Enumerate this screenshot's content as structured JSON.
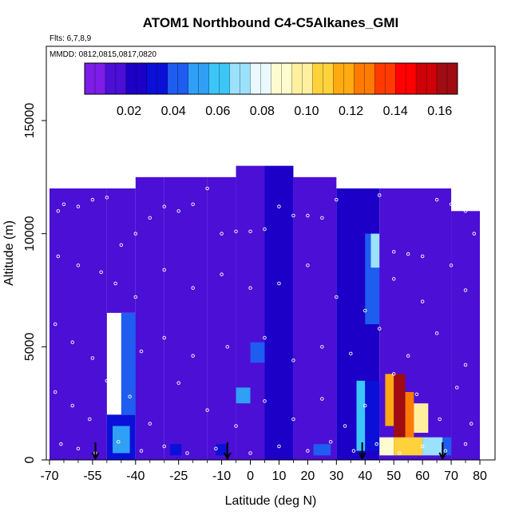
{
  "chart_data": {
    "type": "heatmap",
    "title": "ATOM1 Northbound C4-C5Alkanes_GMI",
    "flights_label": "Flts: 6,7,8,9",
    "dates_label": "MMDD: 0812,0815,0817,0820",
    "xlabel": "Latitude (deg N)",
    "ylabel": "Altitude (m)",
    "xlim": [
      -70,
      80
    ],
    "ylim": [
      0,
      17500
    ],
    "x_ticks": [
      -70,
      -55,
      -40,
      -25,
      -10,
      0,
      10,
      20,
      30,
      40,
      50,
      60,
      70,
      80
    ],
    "y_ticks": [
      0,
      5000,
      10000,
      15000
    ],
    "colorbar": {
      "range": [
        0,
        0.168
      ],
      "ticks": [
        0.02,
        0.04,
        0.06,
        0.08,
        0.1,
        0.12,
        0.14,
        0.16
      ],
      "tick_labels": [
        "0.02",
        "0.04",
        "0.06",
        "0.08",
        "0.10",
        "0.12",
        "0.14",
        "0.16"
      ],
      "colors": [
        "#7d1de8",
        "#4b0fd6",
        "#1c00c8",
        "#0a10d8",
        "#1f5cf0",
        "#2fa0f5",
        "#3cc6f7",
        "#9be1fb",
        "#eaf8ff",
        "#fffbd0",
        "#fff0a0",
        "#ffd23c",
        "#ffaa10",
        "#ff7a00",
        "#ff3a00",
        "#ff0000",
        "#d00008",
        "#a00c12"
      ]
    },
    "cells": [
      [
        -70,
        -50,
        0,
        12000,
        0.015
      ],
      [
        -50,
        -40,
        0,
        2000,
        0.03
      ],
      [
        -45,
        -38,
        2000,
        6500,
        0.045
      ],
      [
        -50,
        -40,
        6500,
        12000,
        0.012
      ],
      [
        -40,
        -30,
        0,
        12500,
        0.01
      ],
      [
        -30,
        -15,
        0,
        12500,
        0.012
      ],
      [
        -15,
        -5,
        0,
        12500,
        0.015
      ],
      [
        -5,
        5,
        0,
        13000,
        0.014
      ],
      [
        5,
        15,
        0,
        13000,
        0.02
      ],
      [
        15,
        30,
        0,
        12500,
        0.012
      ],
      [
        30,
        45,
        0,
        12000,
        0.02
      ],
      [
        40,
        47,
        6000,
        10000,
        0.045
      ],
      [
        42,
        48,
        8500,
        10000,
        0.07
      ],
      [
        45,
        70,
        0,
        12000,
        0.018
      ],
      [
        70,
        80,
        0,
        11000,
        0.012
      ],
      [
        37,
        40,
        400,
        3500,
        0.06
      ],
      [
        40,
        45,
        400,
        3500,
        0.035
      ],
      [
        45,
        50,
        200,
        1000,
        0.09
      ],
      [
        47,
        50,
        1500,
        3800,
        0.12
      ],
      [
        50,
        54,
        1000,
        3800,
        0.16
      ],
      [
        54,
        57,
        1000,
        3000,
        0.13
      ],
      [
        57,
        62,
        1200,
        2500,
        0.1
      ],
      [
        50,
        60,
        200,
        1000,
        0.11
      ],
      [
        60,
        67,
        200,
        1000,
        0.07
      ],
      [
        67,
        70,
        200,
        1000,
        0.04
      ],
      [
        -48,
        -42,
        300,
        1500,
        0.05
      ],
      [
        -5,
        0,
        2500,
        3200,
        0.05
      ],
      [
        0,
        5,
        4300,
        5200,
        0.045
      ],
      [
        22,
        28,
        200,
        700,
        0.04
      ],
      [
        -28,
        -24,
        200,
        700,
        0.03
      ],
      [
        -12,
        -8,
        200,
        700,
        0.035
      ]
    ],
    "track_points": [
      [
        -67,
        11000
      ],
      [
        -65,
        11300
      ],
      [
        -60,
        11200
      ],
      [
        -55,
        11500
      ],
      [
        -50,
        11600
      ],
      [
        -45,
        9500
      ],
      [
        -40,
        10000
      ],
      [
        -35,
        10700
      ],
      [
        -30,
        11200
      ],
      [
        -25,
        11000
      ],
      [
        -20,
        11300
      ],
      [
        -15,
        12000
      ],
      [
        -10,
        10000
      ],
      [
        -5,
        10100
      ],
      [
        0,
        10100
      ],
      [
        5,
        10200
      ],
      [
        10,
        11200
      ],
      [
        15,
        10800
      ],
      [
        20,
        10800
      ],
      [
        25,
        10700
      ],
      [
        30,
        11500
      ],
      [
        35,
        12300
      ],
      [
        40,
        12200
      ],
      [
        45,
        11700
      ],
      [
        50,
        9200
      ],
      [
        55,
        9100
      ],
      [
        60,
        9000
      ],
      [
        65,
        11500
      ],
      [
        70,
        11300
      ],
      [
        75,
        11000
      ],
      [
        78,
        10000
      ],
      [
        -67,
        9000
      ],
      [
        -60,
        8600
      ],
      [
        -52,
        8300
      ],
      [
        -47,
        7800
      ],
      [
        -40,
        7200
      ],
      [
        -30,
        8400
      ],
      [
        -20,
        7600
      ],
      [
        -10,
        8200
      ],
      [
        0,
        7600
      ],
      [
        10,
        7800
      ],
      [
        20,
        8600
      ],
      [
        30,
        7200
      ],
      [
        40,
        6600
      ],
      [
        50,
        8000
      ],
      [
        60,
        7000
      ],
      [
        70,
        8600
      ],
      [
        75,
        7500
      ],
      [
        -68,
        6000
      ],
      [
        -62,
        5200
      ],
      [
        -55,
        4500
      ],
      [
        -48,
        5500
      ],
      [
        -38,
        4800
      ],
      [
        -30,
        5400
      ],
      [
        -20,
        4600
      ],
      [
        -8,
        5000
      ],
      [
        5,
        5400
      ],
      [
        15,
        4400
      ],
      [
        25,
        5000
      ],
      [
        35,
        4700
      ],
      [
        45,
        5800
      ],
      [
        55,
        4600
      ],
      [
        65,
        5600
      ],
      [
        75,
        4200
      ],
      [
        -68,
        3000
      ],
      [
        -62,
        2400
      ],
      [
        -56,
        1800
      ],
      [
        -50,
        3500
      ],
      [
        -42,
        2800
      ],
      [
        -35,
        1600
      ],
      [
        -25,
        3400
      ],
      [
        -15,
        2200
      ],
      [
        -5,
        1500
      ],
      [
        5,
        2600
      ],
      [
        15,
        1800
      ],
      [
        25,
        2700
      ],
      [
        33,
        1500
      ],
      [
        40,
        2400
      ],
      [
        50,
        3800
      ],
      [
        58,
        2900
      ],
      [
        66,
        1800
      ],
      [
        72,
        3200
      ],
      [
        77,
        1600
      ],
      [
        -66,
        700
      ],
      [
        -60,
        500
      ],
      [
        -54,
        300
      ],
      [
        -46,
        800
      ],
      [
        -38,
        400
      ],
      [
        -30,
        600
      ],
      [
        -22,
        300
      ],
      [
        -12,
        500
      ],
      [
        0,
        300
      ],
      [
        10,
        600
      ],
      [
        20,
        400
      ],
      [
        28,
        800
      ],
      [
        36,
        400
      ],
      [
        44,
        700
      ],
      [
        52,
        300
      ],
      [
        60,
        600
      ],
      [
        68,
        400
      ],
      [
        75,
        700
      ]
    ],
    "arrow_latitudes": [
      -54,
      -8,
      39,
      67
    ]
  }
}
